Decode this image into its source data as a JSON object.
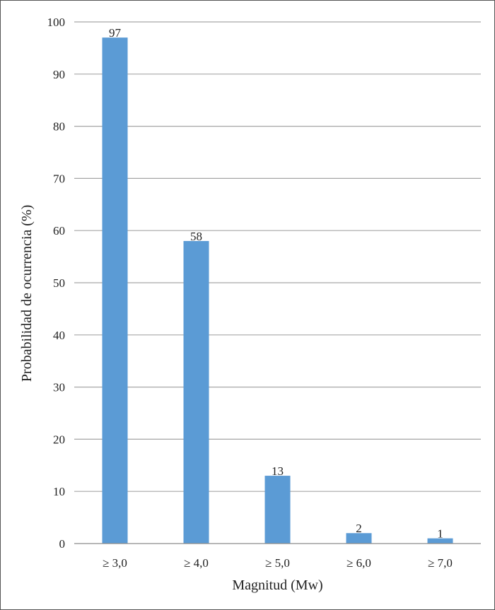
{
  "chart_data": {
    "type": "bar",
    "categories": [
      "≥ 3,0",
      "≥ 4,0",
      "≥ 5,0",
      "≥ 6,0",
      "≥ 7,0"
    ],
    "values": [
      97,
      58,
      13,
      2,
      1
    ],
    "data_labels": [
      "97",
      "58",
      "13",
      "2",
      "1"
    ],
    "title": "",
    "xlabel": "Magnitud (Mw)",
    "ylabel": "Probabilidad de ocurrencia (%)",
    "ylim": [
      0,
      100
    ],
    "yticks": [
      0,
      10,
      20,
      30,
      40,
      50,
      60,
      70,
      80,
      90,
      100
    ],
    "grid": true,
    "bar_color": "#5b9bd5",
    "grid_color": "#a6a6a6"
  }
}
